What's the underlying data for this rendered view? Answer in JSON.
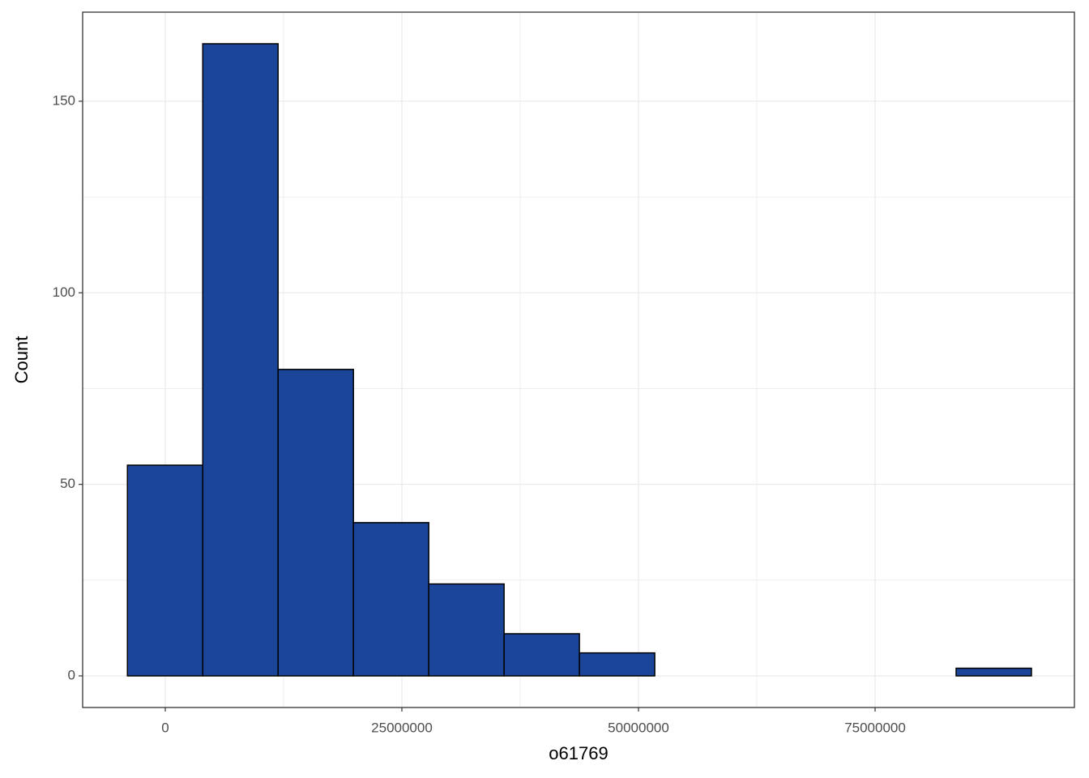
{
  "chart_data": {
    "type": "histogram",
    "x_label": "o61769",
    "y_label": "Count",
    "bins": [
      -4000000,
      3960000,
      11920000,
      19880000,
      27840000,
      35800000,
      43760000,
      51720000,
      59680000,
      67640000,
      75600000,
      83560000,
      91520000
    ],
    "counts": [
      55,
      165,
      80,
      40,
      24,
      11,
      6,
      0,
      0,
      0,
      0,
      2
    ],
    "color": "#1a4599",
    "edge_color": "#000000",
    "xlim": [
      -8730000,
      96060000
    ],
    "ylim": [
      -8.25,
      173.25
    ],
    "xticks": [
      0,
      25000000,
      50000000,
      75000000
    ],
    "yticks": [
      0,
      50,
      100,
      150
    ],
    "grid": true
  }
}
